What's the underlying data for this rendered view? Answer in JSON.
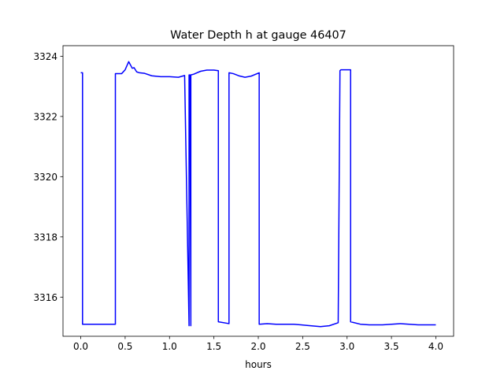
{
  "chart_data": {
    "type": "line",
    "title": "Water Depth h at gauge 46407",
    "xlabel": "hours",
    "ylabel": "",
    "xlim": [
      -0.2,
      4.2
    ],
    "ylim": [
      3314.7,
      3324.35
    ],
    "xticks": [
      0.0,
      0.5,
      1.0,
      1.5,
      2.0,
      2.5,
      3.0,
      3.5,
      4.0
    ],
    "xtick_labels": [
      "0.0",
      "0.5",
      "1.0",
      "1.5",
      "2.0",
      "2.5",
      "3.0",
      "3.5",
      "4.0"
    ],
    "yticks": [
      3316,
      3318,
      3320,
      3322,
      3324
    ],
    "ytick_labels": [
      "3316",
      "3318",
      "3320",
      "3322",
      "3324"
    ],
    "grid": false,
    "series": [
      {
        "color": "#0000ff",
        "x": [
          0.0,
          0.02,
          0.02,
          0.39,
          0.39,
          0.46,
          0.5,
          0.54,
          0.58,
          0.6,
          0.63,
          0.66,
          0.72,
          0.8,
          0.9,
          1.0,
          1.1,
          1.17,
          1.22,
          1.22,
          1.23,
          1.24,
          1.24,
          1.27,
          1.35,
          1.42,
          1.5,
          1.55,
          1.55,
          1.67,
          1.67,
          1.72,
          1.78,
          1.85,
          1.92,
          2.01,
          2.01,
          2.1,
          2.2,
          2.4,
          2.55,
          2.7,
          2.8,
          2.9,
          2.9,
          2.92,
          2.93,
          3.04,
          3.04,
          3.15,
          3.25,
          3.4,
          3.5,
          3.6,
          3.7,
          3.8,
          4.0
        ],
        "y": [
          3323.45,
          3323.45,
          3315.1,
          3315.1,
          3323.42,
          3323.42,
          3323.55,
          3323.82,
          3323.6,
          3323.62,
          3323.48,
          3323.45,
          3323.43,
          3323.35,
          3323.32,
          3323.32,
          3323.3,
          3323.36,
          3315.05,
          3323.38,
          3323.38,
          3315.05,
          3323.38,
          3323.4,
          3323.5,
          3323.54,
          3323.54,
          3323.52,
          3315.18,
          3315.12,
          3323.45,
          3323.42,
          3323.35,
          3323.3,
          3323.34,
          3323.45,
          3315.1,
          3315.12,
          3315.1,
          3315.1,
          3315.06,
          3315.02,
          3315.05,
          3315.15,
          3315.18,
          3323.52,
          3323.55,
          3323.55,
          3315.18,
          3315.1,
          3315.08,
          3315.08,
          3315.1,
          3315.12,
          3315.1,
          3315.08,
          3315.08
        ]
      }
    ]
  }
}
